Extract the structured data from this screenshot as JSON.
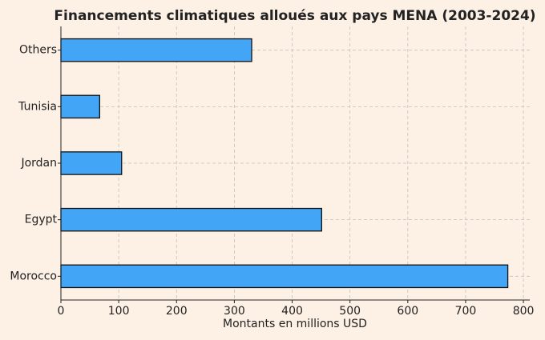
{
  "chart_data": {
    "type": "barh",
    "title": "Financements climatiques alloués aux pays MENA (2003-2024)",
    "x_label": "Montants en millions USD",
    "categories": [
      "Morocco",
      "Egypt",
      "Jordan",
      "Tunisia",
      "Others"
    ],
    "values": [
      773,
      451,
      105,
      67,
      330
    ],
    "color": "#42a5f5",
    "xlim": [
      0,
      811
    ],
    "xticks": [
      0,
      100,
      200,
      300,
      400,
      500,
      600,
      700,
      800
    ],
    "grid": true
  }
}
